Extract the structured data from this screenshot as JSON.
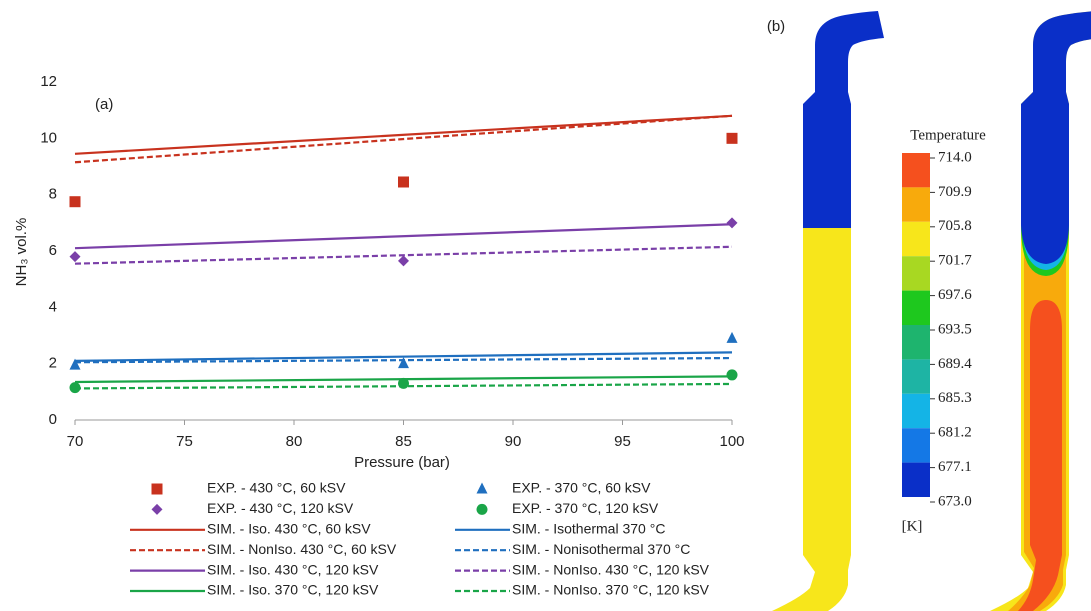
{
  "chart_data": [
    {
      "type": "line",
      "panel_label": "(a)",
      "x_label": "Pressure (bar)",
      "y_label": "NH₃ vol.%",
      "xlim": [
        70,
        100
      ],
      "xticks": [
        70,
        75,
        80,
        85,
        90,
        95,
        100
      ],
      "ylim": [
        0,
        12
      ],
      "yticks": [
        0,
        2,
        4,
        6,
        8,
        10,
        12
      ],
      "series": [
        {
          "name": "EXP. - 430 °C, 60 kSV",
          "color": "#c8321e",
          "marker": "square",
          "x": [
            70,
            85,
            100
          ],
          "values": [
            7.75,
            8.45,
            10
          ]
        },
        {
          "name": "EXP. - 370 °C, 60 kSV",
          "color": "#1f6fbf",
          "marker": "triangle",
          "x": [
            70,
            85,
            100
          ],
          "values": [
            1.95,
            2.0,
            2.9
          ]
        },
        {
          "name": "EXP. - 430 °C, 120 kSV",
          "color": "#7a3fa8",
          "marker": "diamond",
          "x": [
            70,
            85,
            100
          ],
          "values": [
            5.8,
            5.65,
            7.0
          ]
        },
        {
          "name": "EXP. - 370 °C, 120 kSV",
          "color": "#1aa548",
          "marker": "circle",
          "x": [
            70,
            85,
            100
          ],
          "values": [
            1.15,
            1.3,
            1.6
          ]
        },
        {
          "name": "SIM. - Iso. 430 °C, 60 kSV",
          "color": "#c8321e",
          "line_style": "solid",
          "x": [
            70,
            100
          ],
          "values": [
            9.45,
            10.8
          ]
        },
        {
          "name": "SIM. - Isothermal 370 °C",
          "color": "#1f6fbf",
          "line_style": "solid",
          "x": [
            70,
            100
          ],
          "values": [
            2.1,
            2.4
          ]
        },
        {
          "name": "SIM. - NonIso. 430 °C, 60 kSV",
          "color": "#c8321e",
          "line_style": "dashed",
          "x": [
            70,
            100
          ],
          "values": [
            9.15,
            10.8
          ]
        },
        {
          "name": "SIM. - Nonisothermal 370 °C",
          "color": "#1f6fbf",
          "line_style": "dashed",
          "x": [
            70,
            100
          ],
          "values": [
            2.05,
            2.2
          ]
        },
        {
          "name": "SIM. - Iso. 430 °C, 120 kSV",
          "color": "#7a3fa8",
          "line_style": "solid",
          "x": [
            70,
            100
          ],
          "values": [
            6.1,
            6.95
          ]
        },
        {
          "name": "SIM. - NonIso. 430 °C, 120 kSV",
          "color": "#7a3fa8",
          "line_style": "dashed",
          "x": [
            70,
            100
          ],
          "values": [
            5.55,
            6.15
          ]
        },
        {
          "name": "SIM. - Iso. 370 °C, 120 kSV",
          "color": "#1aa548",
          "line_style": "solid",
          "x": [
            70,
            100
          ],
          "values": [
            1.35,
            1.55
          ]
        },
        {
          "name": "SIM. - NonIso. 370 °C, 120 kSV",
          "color": "#1aa548",
          "line_style": "dashed",
          "x": [
            70,
            100
          ],
          "values": [
            1.12,
            1.28
          ]
        }
      ]
    },
    {
      "type": "contour",
      "panel_label": "(b)",
      "colorbar_title": "Temperature",
      "colorbar_unit": "[K]",
      "colorbar_ticks": [
        {
          "value": 714,
          "label": "714.0"
        },
        709.9,
        705.8,
        701.7,
        697.6,
        693.5,
        689.4,
        685.3,
        681.2,
        677.1,
        {
          "value": 673,
          "label": "673.0"
        }
      ],
      "colorbar_colors": [
        "#f5501e",
        "#f8aa0c",
        "#f7e61b",
        "#a8d822",
        "#1ec81e",
        "#1eb46e",
        "#1eb4a4",
        "#14b4e6",
        "#1478e6",
        "#0a2fc8"
      ]
    }
  ]
}
